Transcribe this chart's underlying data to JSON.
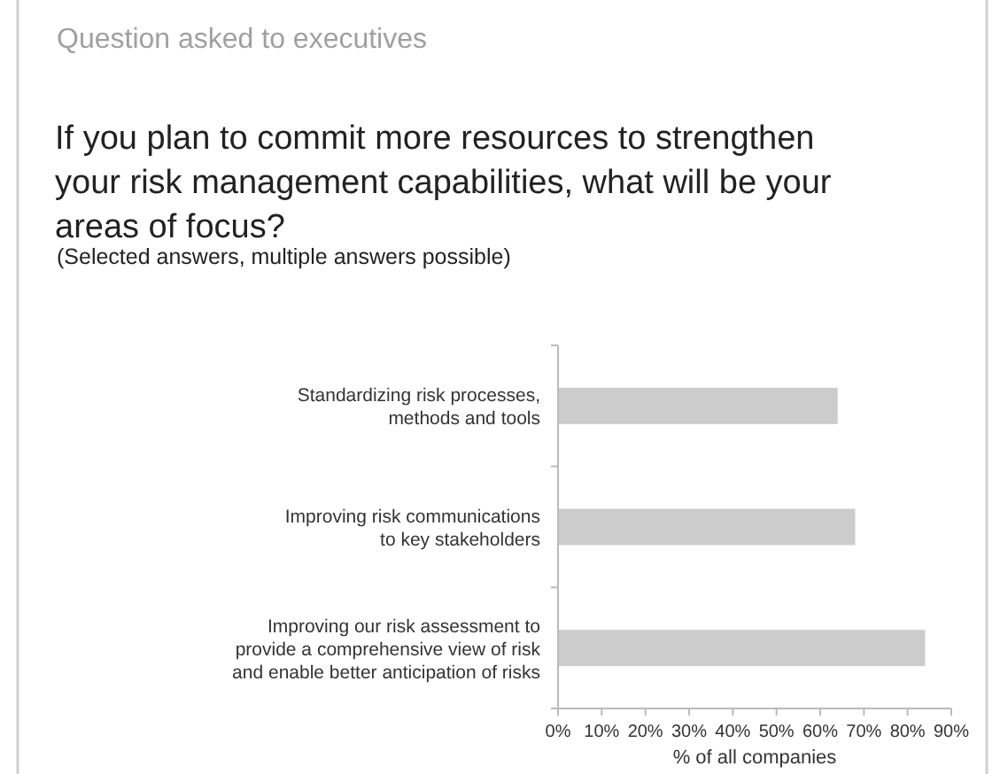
{
  "chart_data": {
    "type": "bar",
    "orientation": "horizontal",
    "title": "If you plan to commit more resources to strengthen your risk management capabilities, what will be your areas of focus?",
    "subtitle": "(Selected answers, multiple answers possible)",
    "annotations": [
      "Question asked to executives"
    ],
    "categories": [
      "Standardizing risk processes, methods and tools",
      "Improving risk communications to key stakeholders",
      "Improving our risk assessment to provide a comprehensive view of risk and enable better anticipation of risks"
    ],
    "values": [
      64,
      68,
      84
    ],
    "color": "#cccccc",
    "xlim": [
      0,
      90
    ],
    "xticks": [
      {
        "value": 0,
        "label": "0%"
      },
      {
        "value": 10,
        "label": "10%"
      },
      {
        "value": 20,
        "label": "20%"
      },
      {
        "value": 30,
        "label": "30%"
      },
      {
        "value": 40,
        "label": "40%"
      },
      {
        "value": 50,
        "label": "50%"
      },
      {
        "value": 60,
        "label": "60%"
      },
      {
        "value": 70,
        "label": "70%"
      },
      {
        "value": 80,
        "label": "80%"
      },
      {
        "value": 90,
        "label": "90%"
      }
    ],
    "xlabel": "% of all companies",
    "grid": false
  }
}
